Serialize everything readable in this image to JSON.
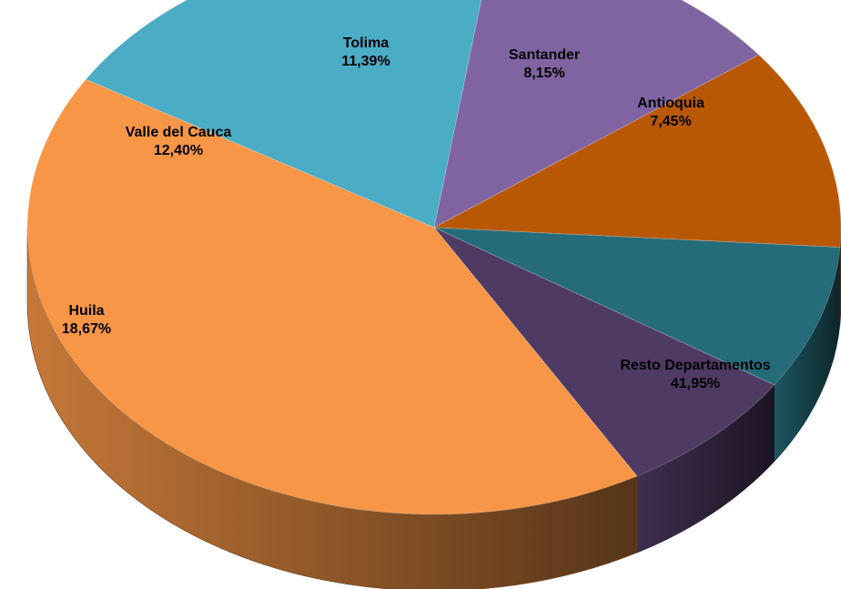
{
  "chart_data": {
    "type": "pie",
    "style": "3d",
    "slices": [
      {
        "label": "Resto Departamentos",
        "value": 41.95,
        "value_label": "41,95%",
        "color": "#F79646"
      },
      {
        "label": "Huila",
        "value": 18.67,
        "value_label": "18,67%",
        "color": "#4BACC6"
      },
      {
        "label": "Valle del Cauca",
        "value": 12.4,
        "value_label": "12,40%",
        "color": "#8064A2"
      },
      {
        "label": "Tolima",
        "value": 11.39,
        "value_label": "11,39%",
        "color": "#B85804"
      },
      {
        "label": "Santander",
        "value": 8.15,
        "value_label": "8,15%",
        "color": "#256B7A"
      },
      {
        "label": "Antioquia",
        "value": 7.45,
        "value_label": "7,45%",
        "color": "#4F3A63"
      }
    ]
  }
}
